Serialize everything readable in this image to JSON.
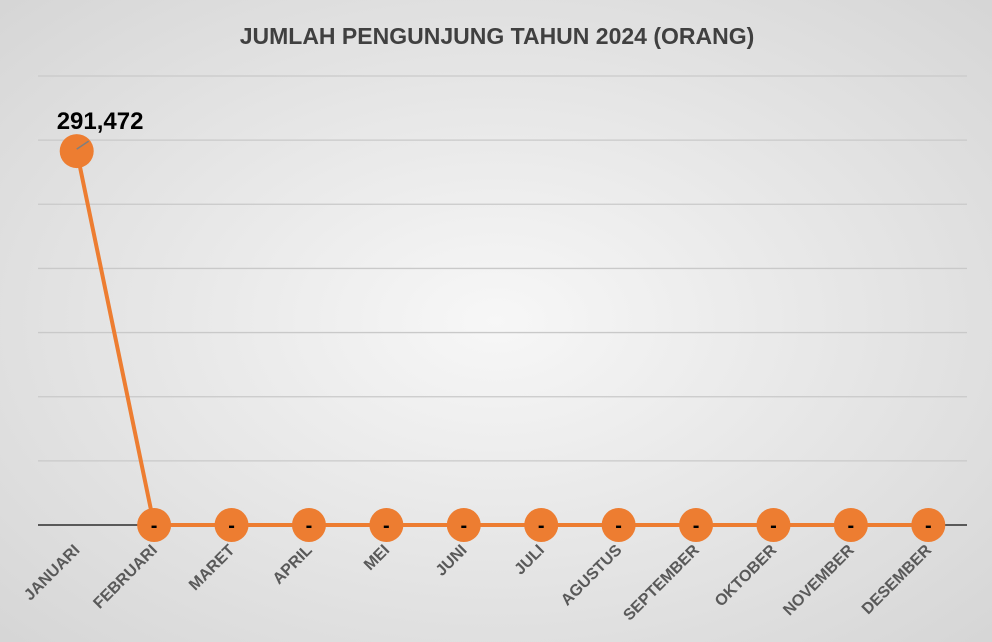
{
  "chart_data": {
    "type": "line",
    "title": "JUMLAH PENGUNJUNG TAHUN 2024 (ORANG)",
    "xlabel": "",
    "ylabel": "",
    "categories": [
      "JANUARI",
      "FEBRUARI",
      "MARET",
      "APRIL",
      "MEI",
      "JUNI",
      "JULI",
      "AGUSTUS",
      "SEPTEMBER",
      "OKTOBER",
      "NOVEMBER",
      "DESEMBER"
    ],
    "series": [
      {
        "values": [
          291472,
          0,
          0,
          0,
          0,
          0,
          0,
          0,
          0,
          0,
          0,
          0
        ],
        "data_labels": [
          "291,472",
          "-",
          "-",
          "-",
          "-",
          "-",
          "-",
          "-",
          "-",
          "-",
          "-",
          "-"
        ],
        "color": "#ED7D31"
      }
    ],
    "ylim": [
      0,
      350000
    ],
    "grid": true,
    "legend": "none"
  },
  "colors": {
    "series": "#ED7D31",
    "gridline": "#c9c9c9",
    "axis": "#595959",
    "background": "#e9e9e9"
  }
}
